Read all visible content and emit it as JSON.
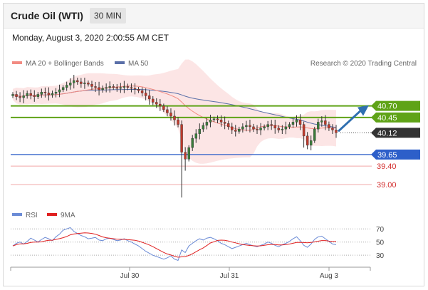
{
  "header": {
    "title": "Crude Oil (WTI)",
    "timeframe": "30 MIN"
  },
  "datetime": "Monday, August 3, 2020 2:00:55 AM CET",
  "legend": {
    "ma_bb": "MA 20 + Bollinger Bands",
    "ma50": "MA 50",
    "copyright": "Research © 2020 Trading Central"
  },
  "rsi_legend": {
    "rsi": "RSI",
    "ma": "9MA"
  },
  "colors": {
    "up": "#3a7d3a",
    "down": "#c0392b",
    "ma20": "#f28b82",
    "ma50": "#5a6fa8",
    "resistance": "#5fa317",
    "support": "#2d5fc9",
    "minor": "#e57373",
    "price": "#333333",
    "arrow": "#2f6fb0",
    "rsi": "#6b8bd6",
    "rsi_ma": "#e02020"
  },
  "chart_data": [
    {
      "type": "candlestick",
      "x_labels": [
        "Jul 30",
        "Jul 31",
        "Aug 3"
      ],
      "ylim": [
        38.6,
        41.45
      ],
      "levels": [
        {
          "value": 40.7,
          "label": "40.70",
          "kind": "resistance"
        },
        {
          "value": 40.45,
          "label": "40.45",
          "kind": "resistance"
        },
        {
          "value": 40.12,
          "label": "40.12",
          "kind": "price"
        },
        {
          "value": 39.65,
          "label": "39.65",
          "kind": "support"
        },
        {
          "value": 39.4,
          "label": "39.40",
          "kind": "minor"
        },
        {
          "value": 39.0,
          "label": "39.00",
          "kind": "minor"
        }
      ],
      "close": [
        40.95,
        40.9,
        40.88,
        40.92,
        40.97,
        40.93,
        40.9,
        40.95,
        41.0,
        40.98,
        40.94,
        40.97,
        41.0,
        41.05,
        41.1,
        41.15,
        41.2,
        41.25,
        41.22,
        41.18,
        41.2,
        41.17,
        41.12,
        41.1,
        41.05,
        41.08,
        41.1,
        41.12,
        41.1,
        41.08,
        41.1,
        41.12,
        41.1,
        41.08,
        41.06,
        41.03,
        40.98,
        40.92,
        40.85,
        40.78,
        40.74,
        40.7,
        40.62,
        40.55,
        40.48,
        40.4,
        40.3,
        39.7,
        39.55,
        39.8,
        40.0,
        40.1,
        40.2,
        40.28,
        40.35,
        40.4,
        40.42,
        40.4,
        40.35,
        40.32,
        40.25,
        40.18,
        40.15,
        40.2,
        40.25,
        40.28,
        40.25,
        40.2,
        40.18,
        40.22,
        40.25,
        40.3,
        40.28,
        40.22,
        40.18,
        40.2,
        40.25,
        40.3,
        40.35,
        40.4,
        40.3,
        40.05,
        39.85,
        39.95,
        40.2,
        40.35,
        40.38,
        40.3,
        40.22,
        40.18,
        40.12
      ]
    },
    {
      "type": "line",
      "series": [
        "RSI",
        "9MA"
      ],
      "levels": [
        70,
        50,
        30
      ],
      "ylim": [
        15,
        80
      ],
      "rsi": [
        44,
        48,
        50,
        47,
        51,
        56,
        53,
        50,
        54,
        57,
        55,
        52,
        58,
        62,
        68,
        70,
        72,
        66,
        63,
        60,
        58,
        55,
        56,
        57,
        53,
        52,
        55,
        56,
        54,
        52,
        53,
        55,
        52,
        50,
        47,
        44,
        40,
        36,
        33,
        30,
        28,
        26,
        24,
        26,
        29,
        24,
        22,
        38,
        34,
        44,
        48,
        52,
        55,
        53,
        56,
        57,
        55,
        52,
        48,
        46,
        43,
        40,
        42,
        44,
        46,
        48,
        46,
        44,
        43,
        45,
        47,
        50,
        48,
        45,
        43,
        46,
        48,
        51,
        55,
        58,
        52,
        45,
        42,
        47,
        54,
        58,
        59,
        55,
        51,
        47,
        46
      ]
    }
  ]
}
